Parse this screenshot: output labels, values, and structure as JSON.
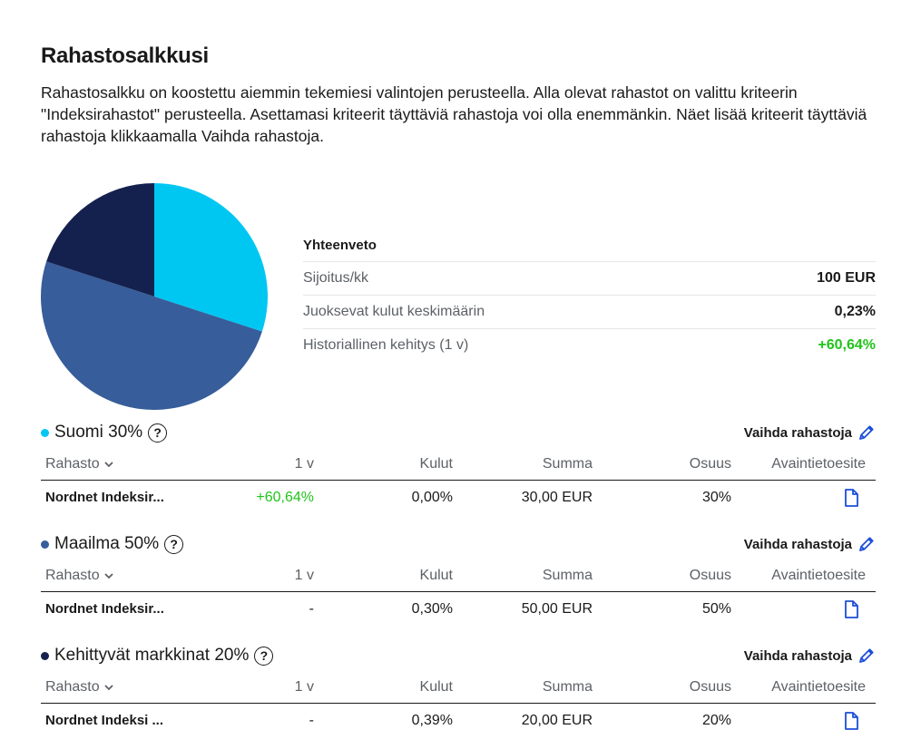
{
  "page": {
    "title": "Rahastosalkkusi",
    "intro": "Rahastosalkku on koostettu aiemmin tekemiesi valintojen perusteella. Alla olevat rahastot on valittu kriteerin \"Indeksirahastot\" perusteella. Asettamasi kriteerit täyttäviä rahastoja voi olla enemmänkin. Näet lisää kriteerit täyttäviä rahastoja klikkaamalla Vaihda rahastoja."
  },
  "colors": {
    "suomi": "#00c7f2",
    "maailma": "#375d9a",
    "kehittyvat": "#14214f",
    "positive": "#1fc31a",
    "link_icon": "#1d4ed8"
  },
  "pie": {
    "slices": [
      {
        "name": "Suomi",
        "value": 30,
        "color": "#00c7f2"
      },
      {
        "name": "Maailma",
        "value": 50,
        "color": "#375d9a"
      },
      {
        "name": "Kehittyvät markkinat",
        "value": 20,
        "color": "#14214f"
      }
    ]
  },
  "summary": {
    "title": "Yhteenveto",
    "rows": [
      {
        "label": "Sijoitus/kk",
        "value": "100 EUR"
      },
      {
        "label": "Juoksevat kulut keskimäärin",
        "value": "0,23%"
      },
      {
        "label": "Historiallinen kehitys (1 v)",
        "value": "+60,64%"
      }
    ]
  },
  "table_headers": {
    "fund": "Rahasto",
    "year": "1 v",
    "fees": "Kulut",
    "amount": "Summa",
    "share": "Osuus",
    "kiid": "Avaintietoesite"
  },
  "change_label": "Vaihda rahastoja",
  "help_icon": "question-icon",
  "groups": [
    {
      "name": "Suomi 30%",
      "fund": "Nordnet Indeksir...",
      "year": "+60,64%",
      "fees": "0,00%",
      "amount": "30,00 EUR",
      "share": "30%"
    },
    {
      "name": "Maailma 50%",
      "fund": "Nordnet Indeksir...",
      "year": "-",
      "fees": "0,30%",
      "amount": "50,00 EUR",
      "share": "50%"
    },
    {
      "name": "Kehittyvät markkinat 20%",
      "fund": "Nordnet Indeksi ...",
      "year": "-",
      "fees": "0,39%",
      "amount": "20,00 EUR",
      "share": "20%"
    }
  ]
}
